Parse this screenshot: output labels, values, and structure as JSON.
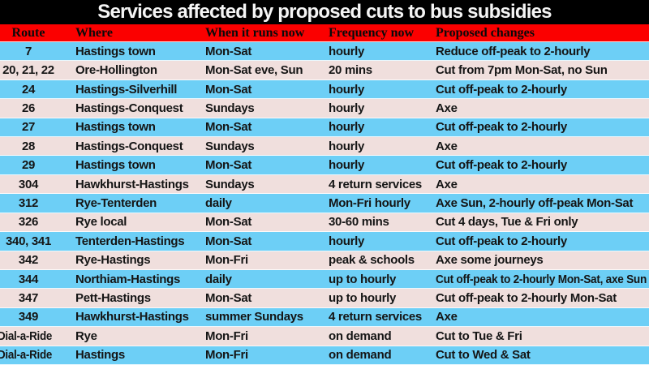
{
  "chart_data": {
    "type": "table",
    "title": "Services affected by proposed cuts to bus subsidies",
    "columns": [
      "Route",
      "Where",
      "When it runs now",
      "Frequency now",
      "Proposed changes"
    ],
    "rows": [
      [
        "7",
        "Hastings town",
        "Mon-Sat",
        "hourly",
        "Reduce off-peak to 2-hourly"
      ],
      [
        "20, 21, 22",
        "Ore-Hollington",
        "Mon-Sat eve, Sun",
        "20 mins",
        "Cut from 7pm Mon-Sat, no Sun"
      ],
      [
        "24",
        "Hastings-Silverhill",
        "Mon-Sat",
        "hourly",
        "Cut off-peak to 2-hourly"
      ],
      [
        "26",
        "Hastings-Conquest",
        "Sundays",
        "hourly",
        "Axe"
      ],
      [
        "27",
        "Hastings town",
        "Mon-Sat",
        "hourly",
        "Cut off-peak to 2-hourly"
      ],
      [
        "28",
        "Hastings-Conquest",
        "Sundays",
        "hourly",
        "Axe"
      ],
      [
        "29",
        "Hastings town",
        "Mon-Sat",
        "hourly",
        "Cut off-peak to 2-hourly"
      ],
      [
        "304",
        "Hawkhurst-Hastings",
        "Sundays",
        "4 return services",
        "Axe"
      ],
      [
        "312",
        "Rye-Tenterden",
        "daily",
        "Mon-Fri hourly",
        "Axe Sun, 2-hourly off-peak Mon-Sat"
      ],
      [
        "326",
        "Rye local",
        "Mon-Sat",
        "30-60 mins",
        "Cut 4 days, Tue & Fri only"
      ],
      [
        "340, 341",
        "Tenterden-Hastings",
        "Mon-Sat",
        "hourly",
        "Cut off-peak to 2-hourly"
      ],
      [
        "342",
        "Rye-Hastings",
        "Mon-Fri",
        "peak & schools",
        "Axe some journeys"
      ],
      [
        "344",
        "Northiam-Hastings",
        "daily",
        "up to hourly",
        "Cut off-peak to 2-hourly Mon-Sat, axe Sun"
      ],
      [
        "347",
        "Pett-Hastings",
        "Mon-Sat",
        "up to hourly",
        "Cut off-peak to 2-hourly Mon-Sat"
      ],
      [
        "349",
        "Hawkhurst-Hastings",
        "summer Sundays",
        "4 return services",
        "Axe"
      ],
      [
        "Dial-a-Ride",
        "Rye",
        "Mon-Fri",
        "on demand",
        "Cut to Tue & Fri"
      ],
      [
        "Dial-a-Ride",
        "Hastings",
        "Mon-Fri",
        "on demand",
        "Cut to Wed & Sat"
      ]
    ]
  },
  "style": {
    "title_bg": "#000000",
    "title_color": "#f5f5f5",
    "header_bg": "#fb0000",
    "row_blue": "#6dcff6",
    "row_pink": "#f0dfdd",
    "text_color": "#151515"
  }
}
